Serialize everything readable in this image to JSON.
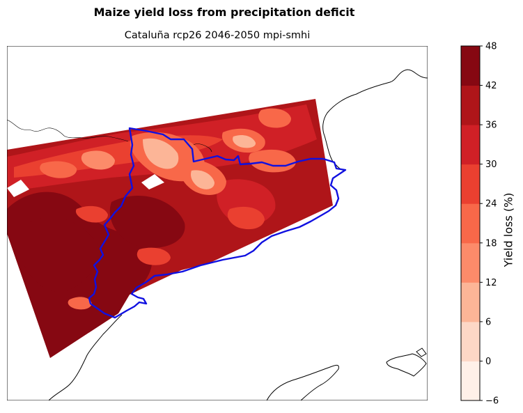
{
  "figure": {
    "suptitle": "Maize yield loss from precipitation deficit",
    "subtitle": "Cataluña rcp26 2046-2050 mpi-smhi"
  },
  "colorbar": {
    "label": "Yield loss (%)",
    "levels": [
      -6,
      0,
      6,
      12,
      18,
      24,
      30,
      36,
      42,
      48
    ],
    "tick_labels": [
      "−6",
      "0",
      "6",
      "12",
      "18",
      "24",
      "30",
      "36",
      "42",
      "48"
    ],
    "colors": [
      "#fff0e8",
      "#fdd7c6",
      "#fcb597",
      "#fc8b6a",
      "#f86849",
      "#ea4030",
      "#d02026",
      "#af1519",
      "#860812"
    ]
  },
  "map": {
    "boundary_color": "#1010e0",
    "coastline_color": "#000000",
    "dominant_fill": "#860812"
  }
}
